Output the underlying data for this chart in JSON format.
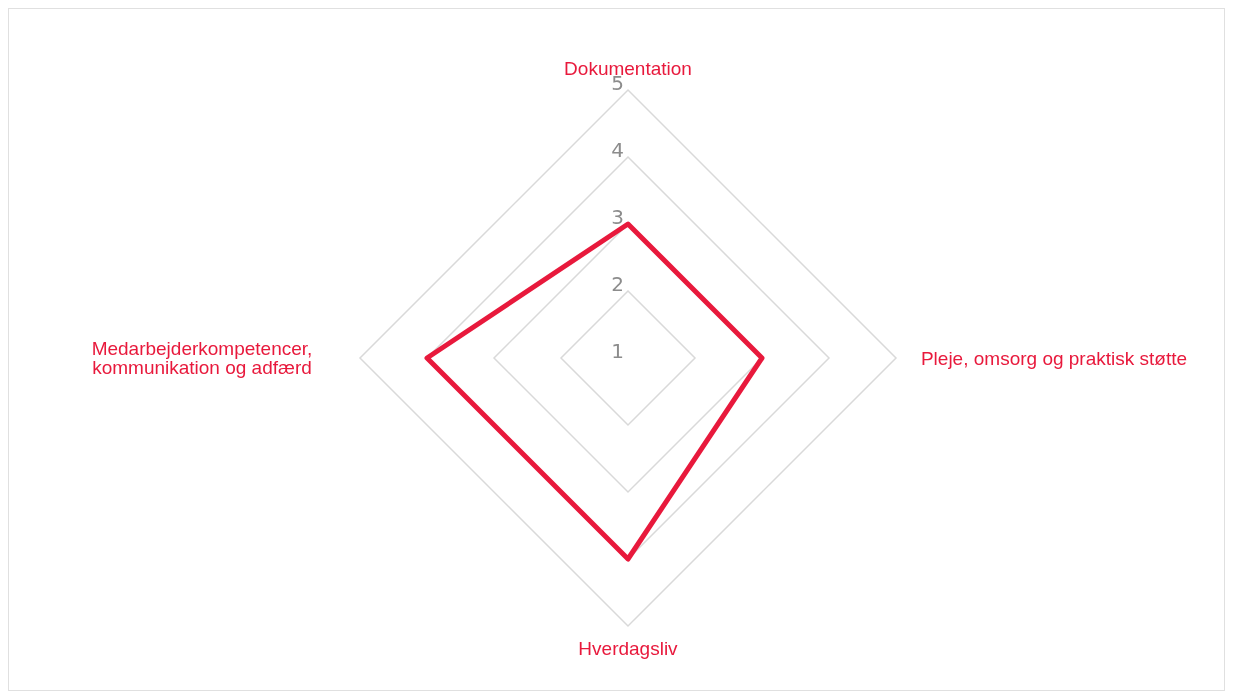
{
  "chart_data": {
    "type": "radar",
    "categories": [
      "Dokumentation",
      "Pleje, omsorg og praktisk støtte",
      "Hverdagsliv",
      "Medarbejderkompetencer, kommunikation og adfærd"
    ],
    "series": [
      {
        "color": "#e8193c",
        "values": [
          3,
          3,
          4,
          4
        ]
      }
    ],
    "ylim": [
      1,
      5
    ],
    "yticks": [
      1,
      2,
      3,
      4,
      5
    ],
    "grid": true
  }
}
